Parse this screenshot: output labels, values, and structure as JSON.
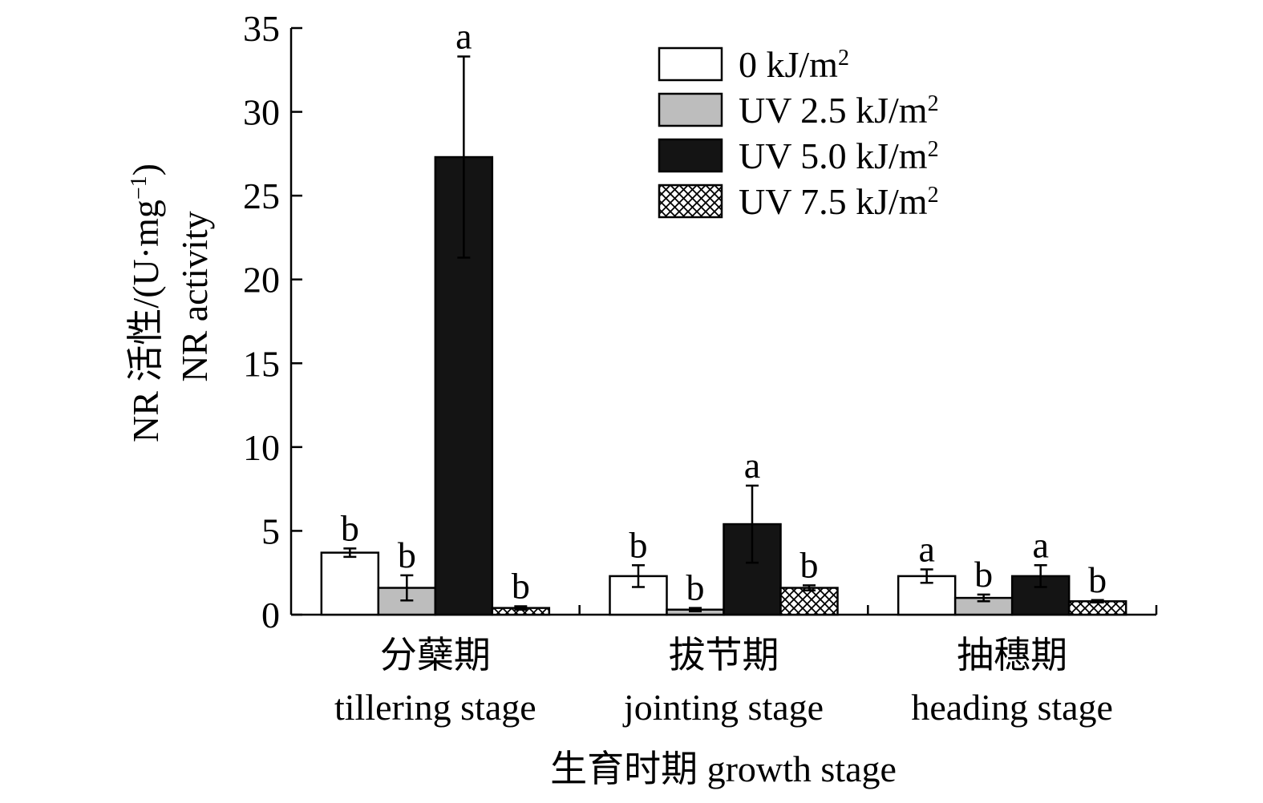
{
  "chart_data": {
    "type": "bar",
    "title": "",
    "ylabel_line1": "NR 活性/(U·mg",
    "ylabel_sup": "−1",
    "ylabel_close": ")",
    "ylabel_line2": "NR activity",
    "xlabel": "生育时期 growth stage",
    "ylim": [
      0,
      35
    ],
    "yticks": [
      "0",
      "5",
      "10",
      "15",
      "20",
      "25",
      "30",
      "35"
    ],
    "grid": false,
    "legend_position": "top-right",
    "categories": [
      {
        "zh": "分蘖期",
        "en": "tillering stage"
      },
      {
        "zh": "拔节期",
        "en": "jointing stage"
      },
      {
        "zh": "抽穗期",
        "en": "heading stage"
      }
    ],
    "series": [
      {
        "name": "0 kJ/m",
        "sup": "2",
        "fill": "#ffffff",
        "pattern": "none",
        "values": [
          3.7,
          2.3,
          2.3
        ],
        "errors": [
          0.25,
          0.65,
          0.4
        ],
        "letters": [
          "b",
          "b",
          "a"
        ]
      },
      {
        "name": "UV 2.5 kJ/m",
        "sup": "2",
        "fill": "#bdbdbd",
        "pattern": "none",
        "values": [
          1.6,
          0.3,
          1.0
        ],
        "errors": [
          0.75,
          0.1,
          0.2
        ],
        "letters": [
          "b",
          "b",
          "b"
        ]
      },
      {
        "name": "UV 5.0 kJ/m",
        "sup": "2",
        "fill": "#141414",
        "pattern": "none",
        "values": [
          27.3,
          5.4,
          2.3
        ],
        "errors": [
          6.0,
          2.3,
          0.65
        ],
        "letters": [
          "a",
          "a",
          "a"
        ]
      },
      {
        "name": "UV 7.5 kJ/m",
        "sup": "2",
        "fill": "#ffffff",
        "pattern": "crosshatch",
        "values": [
          0.4,
          1.6,
          0.8
        ],
        "errors": [
          0.1,
          0.15,
          0.07
        ],
        "letters": [
          "b",
          "b",
          "b"
        ]
      }
    ]
  }
}
